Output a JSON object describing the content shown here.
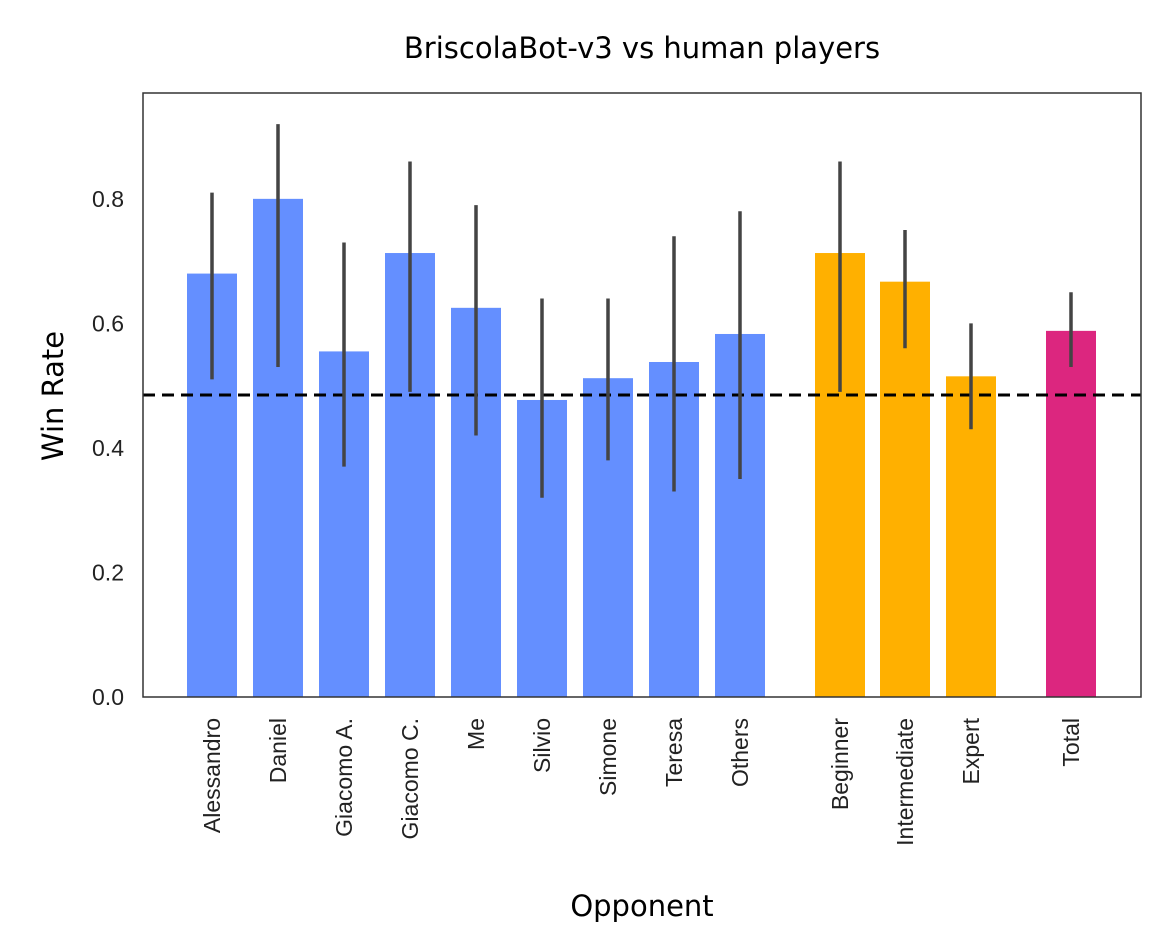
{
  "chart_data": {
    "type": "bar",
    "title": "BriscolaBot-v3 vs human players",
    "xlabel": "Opponent",
    "ylabel": "Win Rate",
    "ylim": [
      0,
      0.97
    ],
    "yticks": [
      0.0,
      0.2,
      0.4,
      0.6,
      0.8
    ],
    "ytick_labels": [
      "0.0",
      "0.2",
      "0.4",
      "0.6",
      "0.8"
    ],
    "grid": false,
    "reference_line": {
      "y": 0.485,
      "style": "dashed",
      "color": "#000000"
    },
    "categories": [
      "Alessandro",
      "Daniel",
      "Giacomo A.",
      "Giacomo C.",
      "Me",
      "Silvio",
      "Simone",
      "Teresa",
      "Others",
      "Beginner",
      "Intermediate",
      "Expert",
      "Total"
    ],
    "groups": [
      "player",
      "player",
      "player",
      "player",
      "player",
      "player",
      "player",
      "player",
      "player",
      "skill",
      "skill",
      "skill",
      "total"
    ],
    "group_colors": {
      "player": "#648FFF",
      "skill": "#FFB000",
      "total": "#DC267F"
    },
    "values": [
      0.68,
      0.8,
      0.555,
      0.713,
      0.625,
      0.477,
      0.512,
      0.538,
      0.583,
      0.713,
      0.667,
      0.515,
      0.588
    ],
    "error_low": [
      0.51,
      0.53,
      0.37,
      0.49,
      0.42,
      0.32,
      0.38,
      0.33,
      0.35,
      0.49,
      0.56,
      0.43,
      0.53
    ],
    "error_high": [
      0.81,
      0.92,
      0.73,
      0.86,
      0.79,
      0.64,
      0.64,
      0.74,
      0.78,
      0.86,
      0.75,
      0.6,
      0.65
    ],
    "error_color": "#444444"
  }
}
